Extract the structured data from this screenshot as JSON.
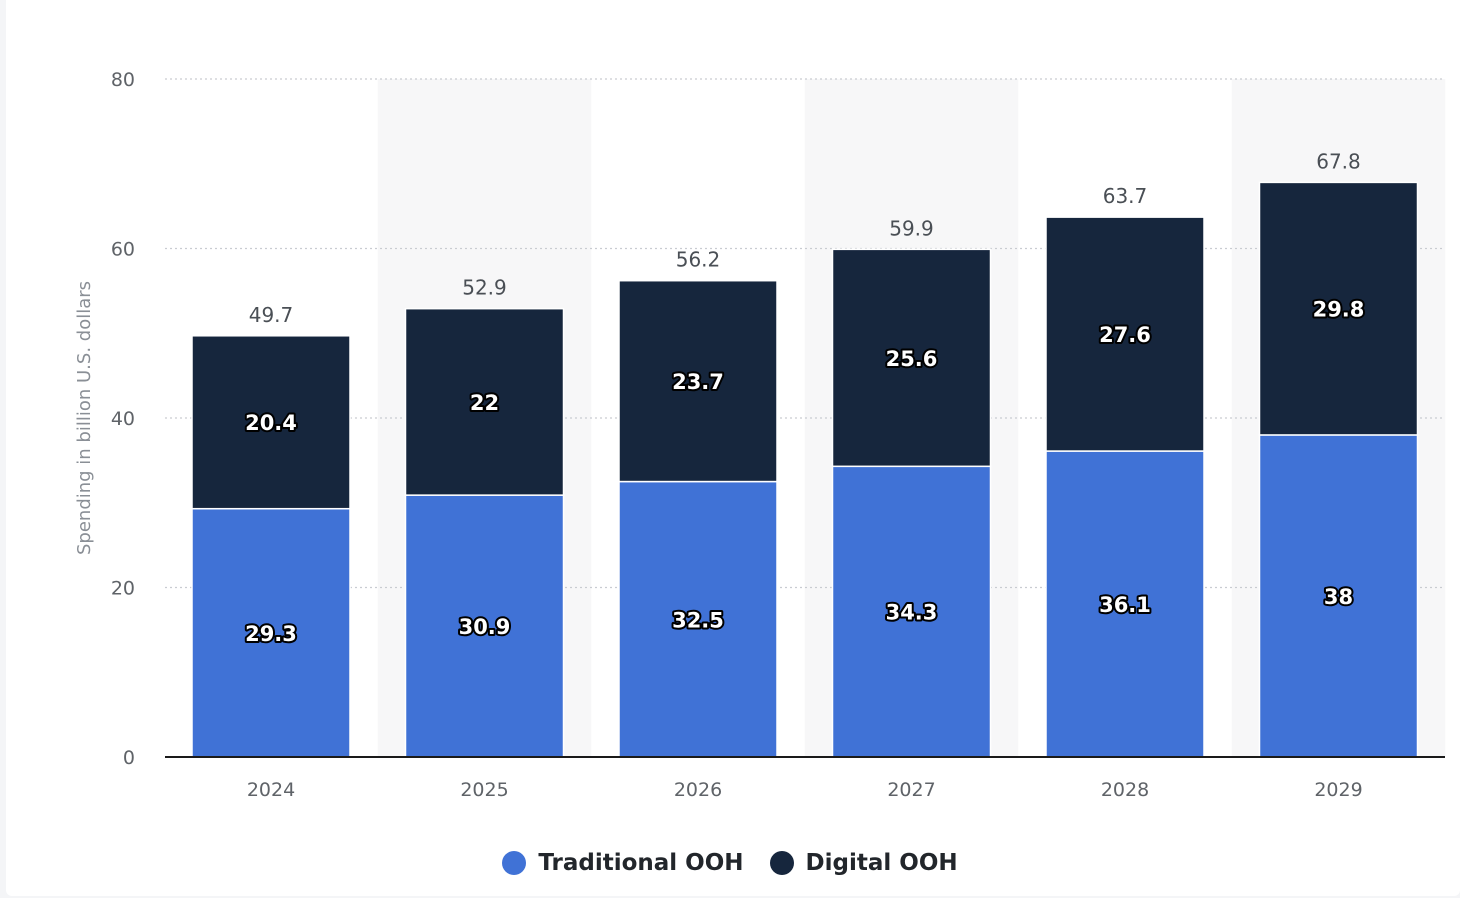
{
  "chart_data": {
    "type": "bar",
    "stacked": true,
    "categories": [
      "2024",
      "2025",
      "2026",
      "2027",
      "2028",
      "2029"
    ],
    "series": [
      {
        "name": "Traditional OOH",
        "color": "#4072d6",
        "values": [
          29.3,
          30.9,
          32.5,
          34.3,
          36.1,
          38
        ]
      },
      {
        "name": "Digital OOH",
        "color": "#16263d",
        "values": [
          20.4,
          22,
          23.7,
          25.6,
          27.6,
          29.8
        ]
      }
    ],
    "totals": [
      49.7,
      52.9,
      56.2,
      59.9,
      63.7,
      67.8
    ],
    "ylabel": "Spending in billion U.S. dollars",
    "ylim": [
      0,
      80
    ],
    "yticks": [
      0,
      20,
      40,
      60,
      80
    ],
    "grid": true,
    "legend_position": "bottom-center"
  }
}
